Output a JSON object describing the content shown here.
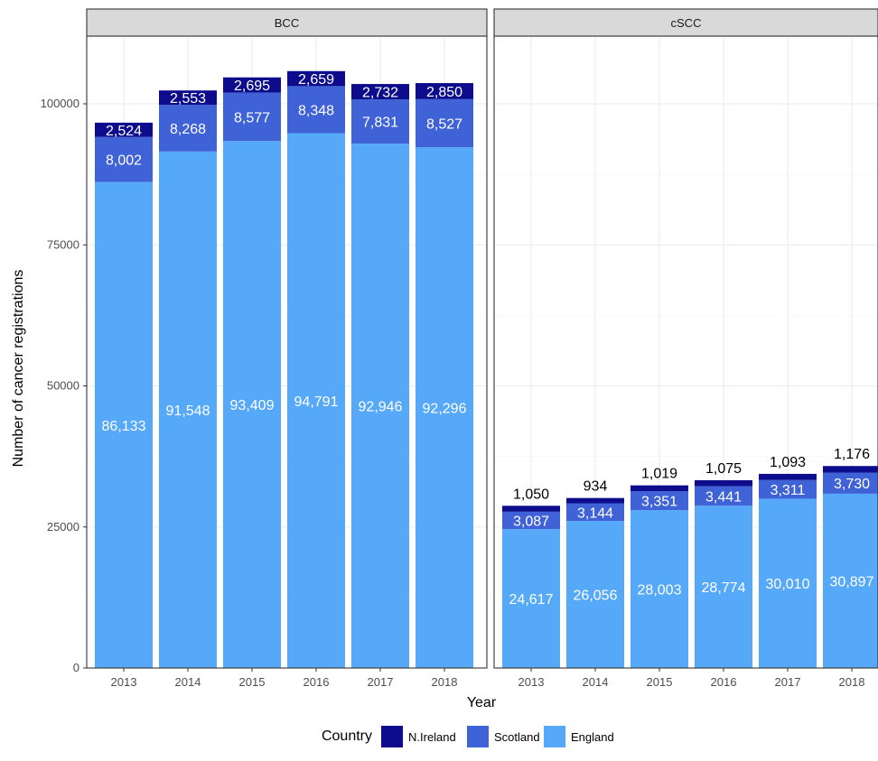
{
  "chart_data": {
    "type": "bar",
    "stacked": true,
    "xlabel": "Year",
    "ylabel": "Number of cancer registrations",
    "ylim": [
      0,
      112000
    ],
    "yticks": [
      0,
      25000,
      50000,
      75000,
      100000
    ],
    "ytick_labels": [
      "0",
      "25000",
      "50000",
      "75000",
      "100000"
    ],
    "grid": true,
    "legend": {
      "title": "Country",
      "placement": "bottom",
      "entries": [
        "N.Ireland",
        "Scotland",
        "England"
      ]
    },
    "colors": {
      "England": "#56a8f8",
      "Scotland": "#3f62d6",
      "N.Ireland": "#0c0c8c"
    },
    "facets": [
      {
        "title": "BCC",
        "categories": [
          "2013",
          "2014",
          "2015",
          "2016",
          "2017",
          "2018"
        ],
        "series": [
          {
            "name": "England",
            "values": [
              86133,
              91548,
              93409,
              94791,
              92946,
              92296
            ],
            "labels": [
              "86,133",
              "91,548",
              "93,409",
              "94,791",
              "92,946",
              "92,296"
            ]
          },
          {
            "name": "Scotland",
            "values": [
              8002,
              8268,
              8577,
              8348,
              7831,
              8527
            ],
            "labels": [
              "8,002",
              "8,268",
              "8,577",
              "8,348",
              "7,831",
              "8,527"
            ]
          },
          {
            "name": "N.Ireland",
            "values": [
              2524,
              2553,
              2695,
              2659,
              2732,
              2850
            ],
            "labels": [
              "2,524",
              "2,553",
              "2,695",
              "2,659",
              "2,732",
              "2,850"
            ]
          }
        ]
      },
      {
        "title": "cSCC",
        "categories": [
          "2013",
          "2014",
          "2015",
          "2016",
          "2017",
          "2018"
        ],
        "series": [
          {
            "name": "England",
            "values": [
              24617,
              26056,
              28003,
              28774,
              30010,
              30897
            ],
            "labels": [
              "24,617",
              "26,056",
              "28,003",
              "28,774",
              "30,010",
              "30,897"
            ]
          },
          {
            "name": "Scotland",
            "values": [
              3087,
              3144,
              3351,
              3441,
              3311,
              3730
            ],
            "labels": [
              "3,087",
              "3,144",
              "3,351",
              "3,441",
              "3,311",
              "3,730"
            ]
          },
          {
            "name": "N.Ireland",
            "values": [
              1050,
              934,
              1019,
              1075,
              1093,
              1176
            ],
            "labels": [
              "1,050",
              "934",
              "1,019",
              "1,075",
              "1,093",
              "1,176"
            ]
          }
        ]
      }
    ]
  }
}
